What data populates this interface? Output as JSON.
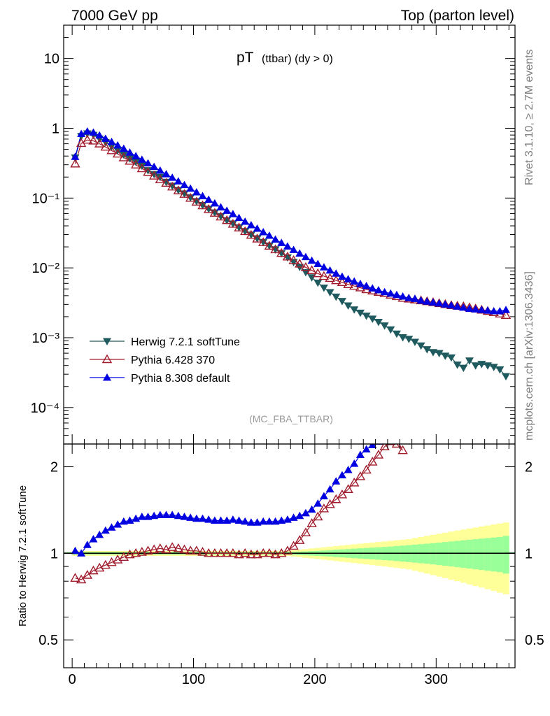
{
  "header": {
    "left": "7000 GeV pp",
    "right": "Top (parton level)"
  },
  "plot_title": {
    "main": "pT",
    "sub": "(ttbar) (dy > 0)"
  },
  "side_labels": {
    "rivet": "Rivet 3.1.10, ≥ 2.7M events",
    "mcplots": "mcplots.cern.ch [arXiv:1306.3436]"
  },
  "analysis_tag": "(MC_FBA_TTBAR)",
  "colors": {
    "herwig": "#1f5a5f",
    "pythia6": "#a01c2c",
    "pythia8": "#0000e0",
    "band_outer": "#ffff99",
    "band_inner": "#99ff99"
  },
  "chart_data": [
    {
      "type": "scatter",
      "panel": "main",
      "y_scale": "log",
      "xlim": [
        -7,
        365
      ],
      "ylim": [
        3e-05,
        30
      ],
      "y_ticks": [
        {
          "value": 10,
          "label": "10"
        },
        {
          "value": 1,
          "label": "1"
        },
        {
          "value": 0.1,
          "label": "10⁻¹"
        },
        {
          "value": 0.01,
          "label": "10⁻²"
        },
        {
          "value": 0.001,
          "label": "10⁻³"
        },
        {
          "value": 0.0001,
          "label": "10⁻⁴"
        }
      ],
      "legend": {
        "placement": "bottom-left",
        "entries": [
          {
            "name": "Herwig 7.2.1 softTune",
            "marker": "triangle-down"
          },
          {
            "name": "Pythia 6.428 370",
            "marker": "triangle-up-open"
          },
          {
            "name": "Pythia 8.308 default",
            "marker": "triangle-up"
          }
        ]
      },
      "x": [
        2.5,
        7.5,
        12.5,
        17.5,
        22.5,
        27.5,
        32.5,
        37.5,
        42.5,
        47.5,
        52.5,
        57.5,
        62.5,
        67.5,
        72.5,
        77.5,
        82.5,
        87.5,
        92.5,
        97.5,
        102.5,
        107.5,
        112.5,
        117.5,
        122.5,
        127.5,
        132.5,
        137.5,
        142.5,
        147.5,
        152.5,
        157.5,
        162.5,
        167.5,
        172.5,
        177.5,
        182.5,
        187.5,
        192.5,
        197.5,
        202.5,
        207.5,
        212.5,
        217.5,
        222.5,
        227.5,
        232.5,
        237.5,
        242.5,
        247.5,
        252.5,
        257.5,
        262.5,
        267.5,
        272.5,
        277.5,
        282.5,
        287.5,
        292.5,
        297.5,
        302.5,
        307.5,
        312.5,
        317.5,
        322.5,
        327.5,
        332.5,
        337.5,
        342.5,
        347.5,
        352.5,
        357.5
      ],
      "series": [
        {
          "name": "Herwig 7.2.1 softTune",
          "values": [
            0.38,
            0.77,
            0.84,
            0.8,
            0.71,
            0.63,
            0.55,
            0.48,
            0.42,
            0.37,
            0.33,
            0.29,
            0.25,
            0.22,
            0.2,
            0.17,
            0.15,
            0.13,
            0.116,
            0.102,
            0.09,
            0.079,
            0.07,
            0.062,
            0.055,
            0.048,
            0.043,
            0.038,
            0.0335,
            0.0298,
            0.0264,
            0.0234,
            0.0208,
            0.0184,
            0.0162,
            0.0141,
            0.0121,
            0.0103,
            0.00867,
            0.0073,
            0.00612,
            0.0052,
            0.00447,
            0.00386,
            0.00334,
            0.00289,
            0.00253,
            0.00227,
            0.00206,
            0.00187,
            0.00168,
            0.00149,
            0.00131,
            0.00114,
            0.00101,
            0.00096,
            0.00087,
            0.00077,
            0.00068,
            0.00062,
            0.0006,
            0.00055,
            0.00052,
            0.00041,
            0.00037,
            0.00047,
            0.0004,
            0.00042,
            0.0004,
            0.00038,
            0.00035,
            0.00028
          ]
        },
        {
          "name": "Pythia 6.428 370",
          "values": [
            0.31,
            0.61,
            0.68,
            0.66,
            0.6,
            0.54,
            0.48,
            0.43,
            0.38,
            0.34,
            0.3,
            0.265,
            0.235,
            0.208,
            0.184,
            0.164,
            0.145,
            0.128,
            0.114,
            0.1,
            0.088,
            0.078,
            0.069,
            0.061,
            0.054,
            0.048,
            0.0425,
            0.0376,
            0.0333,
            0.0295,
            0.0261,
            0.0232,
            0.0206,
            0.0183,
            0.0162,
            0.0144,
            0.0128,
            0.0114,
            0.0102,
            0.0092,
            0.0083,
            0.0076,
            0.0071,
            0.0066,
            0.0062,
            0.0058,
            0.0055,
            0.0052,
            0.0049,
            0.0047,
            0.0045,
            0.0043,
            0.0041,
            0.0039,
            0.0037,
            0.0036,
            0.0035,
            0.0034,
            0.0033,
            0.0032,
            0.0031,
            0.003,
            0.0029,
            0.00285,
            0.0028,
            0.0027,
            0.0026,
            0.0025,
            0.0024,
            0.0023,
            0.0022,
            0.0021
          ]
        },
        {
          "name": "Pythia 8.308 default",
          "values": [
            0.39,
            0.83,
            0.9,
            0.87,
            0.79,
            0.71,
            0.64,
            0.57,
            0.51,
            0.45,
            0.4,
            0.355,
            0.315,
            0.28,
            0.248,
            0.22,
            0.196,
            0.174,
            0.154,
            0.137,
            0.121,
            0.107,
            0.095,
            0.084,
            0.074,
            0.066,
            0.059,
            0.052,
            0.046,
            0.041,
            0.0365,
            0.0325,
            0.029,
            0.0255,
            0.0228,
            0.0203,
            0.0181,
            0.0161,
            0.0143,
            0.0127,
            0.0114,
            0.0102,
            0.0092,
            0.0083,
            0.0075,
            0.0069,
            0.0064,
            0.0059,
            0.0055,
            0.0051,
            0.0048,
            0.0045,
            0.0043,
            0.0041,
            0.0039,
            0.0037,
            0.0036,
            0.0034,
            0.0033,
            0.0032,
            0.0031,
            0.003,
            0.0029,
            0.0028,
            0.0027,
            0.0026,
            0.00255,
            0.0025,
            0.00245,
            0.0024,
            0.0024,
            0.0025
          ]
        }
      ]
    },
    {
      "type": "scatter",
      "panel": "ratio",
      "ylabel": "Ratio to Herwig 7.2.1 softTune",
      "y_scale": "log",
      "xlim": [
        -7,
        365
      ],
      "ylim": [
        0.4,
        2.4
      ],
      "x_ticks": [
        0,
        100,
        200,
        300
      ],
      "y_ticks": [
        {
          "value": 2,
          "label": "2"
        },
        {
          "value": 1,
          "label": "1"
        },
        {
          "value": 0.5,
          "label": "0.5"
        }
      ],
      "reference": 1,
      "x": [
        2.5,
        7.5,
        12.5,
        17.5,
        22.5,
        27.5,
        32.5,
        37.5,
        42.5,
        47.5,
        52.5,
        57.5,
        62.5,
        67.5,
        72.5,
        77.5,
        82.5,
        87.5,
        92.5,
        97.5,
        102.5,
        107.5,
        112.5,
        117.5,
        122.5,
        127.5,
        132.5,
        137.5,
        142.5,
        147.5,
        152.5,
        157.5,
        162.5,
        167.5,
        172.5,
        177.5,
        182.5,
        187.5,
        192.5,
        197.5,
        202.5,
        207.5,
        212.5,
        217.5,
        222.5,
        227.5,
        232.5,
        237.5,
        242.5,
        247.5,
        252.5,
        257.5,
        262.5,
        267.5,
        272.5,
        277.5,
        282.5,
        287.5,
        292.5,
        297.5,
        302.5,
        307.5,
        312.5,
        317.5,
        322.5,
        327.5,
        332.5,
        337.5,
        342.5,
        347.5,
        352.5,
        357.5
      ],
      "band_outer_halfwidth": [
        0.02,
        0.02,
        0.02,
        0.02,
        0.02,
        0.02,
        0.02,
        0.02,
        0.02,
        0.02,
        0.02,
        0.02,
        0.02,
        0.02,
        0.02,
        0.02,
        0.02,
        0.02,
        0.02,
        0.02,
        0.02,
        0.02,
        0.02,
        0.02,
        0.02,
        0.02,
        0.02,
        0.02,
        0.02,
        0.02,
        0.02,
        0.02,
        0.02,
        0.02,
        0.02,
        0.02,
        0.025,
        0.03,
        0.035,
        0.04,
        0.045,
        0.05,
        0.055,
        0.06,
        0.065,
        0.07,
        0.075,
        0.08,
        0.085,
        0.09,
        0.095,
        0.1,
        0.105,
        0.11,
        0.115,
        0.12,
        0.13,
        0.14,
        0.15,
        0.16,
        0.17,
        0.18,
        0.19,
        0.2,
        0.21,
        0.22,
        0.23,
        0.24,
        0.25,
        0.26,
        0.27,
        0.28
      ],
      "band_inner_halfwidth": [
        0.01,
        0.01,
        0.01,
        0.01,
        0.01,
        0.01,
        0.01,
        0.01,
        0.01,
        0.01,
        0.01,
        0.01,
        0.01,
        0.01,
        0.01,
        0.01,
        0.01,
        0.01,
        0.01,
        0.01,
        0.01,
        0.01,
        0.01,
        0.01,
        0.01,
        0.01,
        0.01,
        0.01,
        0.01,
        0.01,
        0.01,
        0.01,
        0.01,
        0.01,
        0.01,
        0.01,
        0.012,
        0.014,
        0.016,
        0.018,
        0.02,
        0.023,
        0.026,
        0.029,
        0.032,
        0.035,
        0.038,
        0.041,
        0.044,
        0.047,
        0.05,
        0.053,
        0.056,
        0.06,
        0.064,
        0.068,
        0.072,
        0.076,
        0.08,
        0.085,
        0.09,
        0.095,
        0.1,
        0.105,
        0.11,
        0.115,
        0.12,
        0.125,
        0.13,
        0.135,
        0.14,
        0.15
      ],
      "series": [
        {
          "name": "Pythia 6.428 370",
          "values": [
            0.82,
            0.81,
            0.84,
            0.87,
            0.89,
            0.91,
            0.93,
            0.95,
            0.97,
            0.99,
            1.0,
            1.01,
            1.02,
            1.03,
            1.04,
            1.03,
            1.05,
            1.04,
            1.03,
            1.02,
            1.02,
            1.01,
            1.0,
            1.0,
            1.0,
            1.0,
            1.0,
            0.99,
            1.0,
            0.99,
            0.99,
            1.0,
            1.0,
            0.99,
            1.0,
            1.02,
            1.06,
            1.11,
            1.18,
            1.27,
            1.34,
            1.43,
            1.48,
            1.54,
            1.6,
            1.67,
            1.76,
            1.85,
            1.95,
            2.08,
            2.2,
            2.35,
            2.45,
            2.4,
            2.28
          ]
        },
        {
          "name": "Pythia 8.308 default",
          "values": [
            1.02,
            1.0,
            1.07,
            1.12,
            1.16,
            1.2,
            1.23,
            1.26,
            1.29,
            1.3,
            1.32,
            1.34,
            1.34,
            1.35,
            1.36,
            1.36,
            1.36,
            1.35,
            1.34,
            1.33,
            1.32,
            1.32,
            1.31,
            1.3,
            1.3,
            1.3,
            1.31,
            1.3,
            1.29,
            1.28,
            1.28,
            1.29,
            1.29,
            1.29,
            1.3,
            1.31,
            1.33,
            1.35,
            1.38,
            1.42,
            1.49,
            1.58,
            1.67,
            1.78,
            1.87,
            1.95,
            2.05,
            2.2,
            2.3,
            2.38,
            2.45
          ]
        }
      ]
    }
  ]
}
